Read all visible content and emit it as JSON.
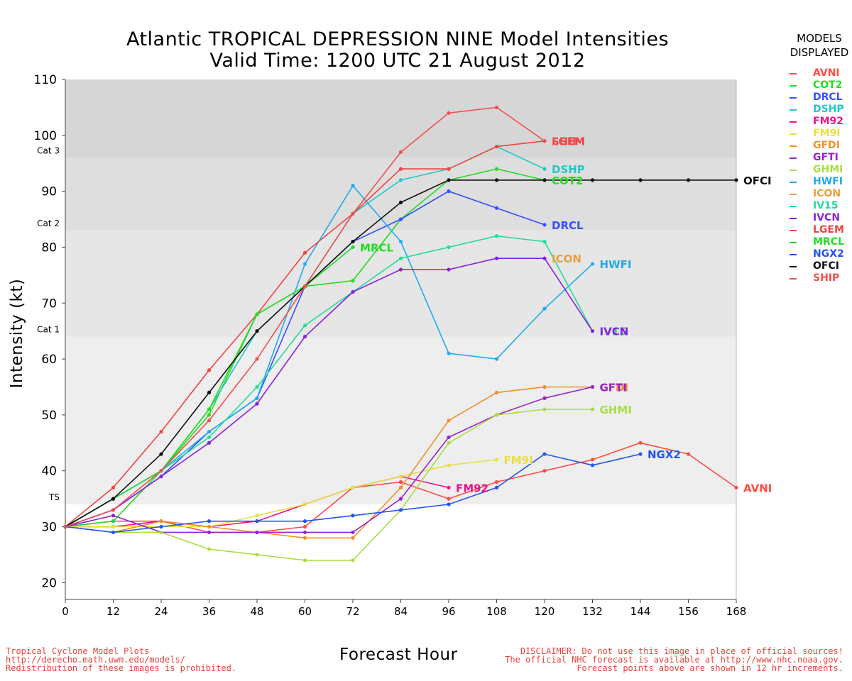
{
  "title": {
    "line1": "Atlantic TROPICAL DEPRESSION NINE Model Intensities",
    "line2": "Valid Time: 1200 UTC 21 August 2012"
  },
  "legend_title": {
    "line1": "MODELS",
    "line2": "DISPLAYED"
  },
  "footer_left": [
    "Tropical Cyclone Model Plots",
    "http://derecho.math.uwm.edu/models/",
    "Redistribution of these images is prohibited."
  ],
  "footer_right": [
    "DISCLAIMER: Do not use this image in place of official sources!",
    "The official NHC forecast is available at http://www.nhc.noaa.gov.",
    "Forecast points above are shown in 12 hr increments."
  ],
  "chart_data": {
    "type": "line",
    "title": "Atlantic TROPICAL DEPRESSION NINE Model Intensities",
    "subtitle": "Valid Time: 1200 UTC 21 August 2012",
    "xlabel": "Forecast Hour",
    "ylabel": "Intensity (kt)",
    "xlim": [
      0,
      168
    ],
    "ylim": [
      17,
      110
    ],
    "x_ticks": [
      0,
      12,
      24,
      36,
      48,
      60,
      72,
      84,
      96,
      108,
      120,
      132,
      144,
      156,
      168
    ],
    "y_ticks": [
      20,
      30,
      40,
      50,
      60,
      70,
      80,
      90,
      100,
      110
    ],
    "bands": [
      {
        "from": 34,
        "to": 64,
        "color": "#eeeeee"
      },
      {
        "from": 64,
        "to": 83,
        "color": "#e6e6e6"
      },
      {
        "from": 83,
        "to": 96,
        "color": "#dedede"
      },
      {
        "from": 96,
        "to": 110,
        "color": "#d6d6d6"
      }
    ],
    "category_labels": [
      {
        "text": "TS",
        "value": 34
      },
      {
        "text": "Cat 1",
        "value": 64
      },
      {
        "text": "Cat 2",
        "value": 83
      },
      {
        "text": "Cat 3",
        "value": 96
      }
    ],
    "legend_position": "right",
    "series": [
      {
        "name": "AVNI",
        "color": "#ff4c44",
        "points": [
          [
            0,
            30
          ],
          [
            12,
            31
          ],
          [
            24,
            31
          ],
          [
            36,
            29
          ],
          [
            48,
            29
          ],
          [
            60,
            30
          ],
          [
            72,
            37
          ],
          [
            84,
            38
          ],
          [
            96,
            35
          ],
          [
            108,
            38
          ],
          [
            120,
            40
          ],
          [
            132,
            42
          ],
          [
            144,
            45
          ],
          [
            156,
            43
          ],
          [
            168,
            37
          ]
        ]
      },
      {
        "name": "COT2",
        "color": "#22dd22",
        "points": [
          [
            0,
            30
          ],
          [
            12,
            31
          ],
          [
            24,
            40
          ],
          [
            36,
            50
          ],
          [
            48,
            68
          ],
          [
            60,
            73
          ],
          [
            72,
            74
          ],
          [
            84,
            85
          ],
          [
            96,
            92
          ],
          [
            108,
            94
          ],
          [
            120,
            92
          ]
        ]
      },
      {
        "name": "DRCL",
        "color": "#3350ff",
        "points": [
          [
            0,
            30
          ],
          [
            12,
            33
          ],
          [
            24,
            39
          ],
          [
            36,
            47
          ],
          [
            48,
            53
          ],
          [
            60,
            73
          ],
          [
            72,
            81
          ],
          [
            84,
            85
          ],
          [
            96,
            90
          ],
          [
            108,
            87
          ],
          [
            120,
            84
          ]
        ]
      },
      {
        "name": "DSHP",
        "color": "#22c8c8",
        "points": [
          [
            0,
            30
          ],
          [
            12,
            35
          ],
          [
            24,
            40
          ],
          [
            36,
            51
          ],
          [
            48,
            65
          ],
          [
            60,
            73
          ],
          [
            72,
            86
          ],
          [
            84,
            92
          ],
          [
            96,
            94
          ],
          [
            108,
            98
          ],
          [
            120,
            94
          ]
        ]
      },
      {
        "name": "FM92",
        "color": "#ee1188",
        "points": [
          [
            0,
            30
          ],
          [
            12,
            30
          ],
          [
            24,
            31
          ],
          [
            36,
            30
          ],
          [
            48,
            31
          ],
          [
            60,
            34
          ],
          [
            72,
            37
          ],
          [
            84,
            39
          ],
          [
            96,
            37
          ]
        ]
      },
      {
        "name": "FM9I",
        "color": "#e8e040",
        "points": [
          [
            0,
            30
          ],
          [
            12,
            30
          ],
          [
            24,
            30
          ],
          [
            36,
            30
          ],
          [
            48,
            32
          ],
          [
            60,
            34
          ],
          [
            72,
            37
          ],
          [
            84,
            39
          ],
          [
            96,
            41
          ],
          [
            108,
            42
          ]
        ]
      },
      {
        "name": "GFDI",
        "color": "#f0902a",
        "points": [
          [
            0,
            30
          ],
          [
            12,
            29
          ],
          [
            24,
            31
          ],
          [
            36,
            30
          ],
          [
            48,
            29
          ],
          [
            60,
            28
          ],
          [
            72,
            28
          ],
          [
            84,
            37
          ],
          [
            96,
            49
          ],
          [
            108,
            54
          ],
          [
            120,
            55
          ],
          [
            132,
            55
          ]
        ]
      },
      {
        "name": "GFTI",
        "color": "#9922cc",
        "points": [
          [
            0,
            30
          ],
          [
            12,
            32
          ],
          [
            24,
            29
          ],
          [
            36,
            29
          ],
          [
            48,
            29
          ],
          [
            60,
            29
          ],
          [
            72,
            29
          ],
          [
            84,
            35
          ],
          [
            96,
            46
          ],
          [
            108,
            50
          ],
          [
            120,
            53
          ],
          [
            132,
            55
          ]
        ]
      },
      {
        "name": "GHMI",
        "color": "#aadd44",
        "points": [
          [
            0,
            30
          ],
          [
            12,
            29
          ],
          [
            24,
            29
          ],
          [
            36,
            26
          ],
          [
            48,
            25
          ],
          [
            60,
            24
          ],
          [
            72,
            24
          ],
          [
            84,
            33
          ],
          [
            96,
            45
          ],
          [
            108,
            50
          ],
          [
            120,
            51
          ],
          [
            132,
            51
          ]
        ]
      },
      {
        "name": "HWFI",
        "color": "#22aaee",
        "points": [
          [
            0,
            30
          ],
          [
            12,
            35
          ],
          [
            24,
            40
          ],
          [
            36,
            47
          ],
          [
            48,
            53
          ],
          [
            60,
            77
          ],
          [
            72,
            91
          ],
          [
            84,
            81
          ],
          [
            96,
            61
          ],
          [
            108,
            60
          ],
          [
            120,
            69
          ],
          [
            132,
            77
          ]
        ]
      },
      {
        "name": "ICON",
        "color": "#e8a040",
        "points": []
      },
      {
        "name": "IV15",
        "color": "#22dd99",
        "points": [
          [
            0,
            30
          ],
          [
            12,
            35
          ],
          [
            24,
            40
          ],
          [
            36,
            46
          ],
          [
            48,
            55
          ],
          [
            60,
            66
          ],
          [
            72,
            72
          ],
          [
            84,
            78
          ],
          [
            96,
            80
          ],
          [
            108,
            82
          ],
          [
            120,
            81
          ],
          [
            132,
            65
          ]
        ]
      },
      {
        "name": "IVCN",
        "color": "#8822dd",
        "points": [
          [
            0,
            30
          ],
          [
            12,
            33
          ],
          [
            24,
            39
          ],
          [
            36,
            45
          ],
          [
            48,
            52
          ],
          [
            60,
            64
          ],
          [
            72,
            72
          ],
          [
            84,
            76
          ],
          [
            96,
            76
          ],
          [
            108,
            78
          ],
          [
            120,
            78
          ],
          [
            132,
            65
          ]
        ]
      },
      {
        "name": "LGEM",
        "color": "#ee4444",
        "points": [
          [
            0,
            30
          ],
          [
            12,
            37
          ],
          [
            24,
            47
          ],
          [
            36,
            58
          ],
          [
            48,
            68
          ],
          [
            60,
            79
          ],
          [
            72,
            86
          ],
          [
            84,
            94
          ],
          [
            96,
            94
          ],
          [
            108,
            98
          ],
          [
            120,
            99
          ]
        ]
      },
      {
        "name": "MRCL",
        "color": "#22dd22",
        "points": [
          [
            0,
            30
          ],
          [
            12,
            35
          ],
          [
            24,
            40
          ],
          [
            36,
            51
          ],
          [
            48,
            68
          ],
          [
            60,
            73
          ],
          [
            72,
            80
          ]
        ]
      },
      {
        "name": "NGX2",
        "color": "#2255ee",
        "points": [
          [
            0,
            30
          ],
          [
            12,
            29
          ],
          [
            24,
            30
          ],
          [
            36,
            31
          ],
          [
            48,
            31
          ],
          [
            60,
            31
          ],
          [
            72,
            32
          ],
          [
            84,
            33
          ],
          [
            96,
            34
          ],
          [
            108,
            37
          ],
          [
            120,
            43
          ],
          [
            132,
            41
          ],
          [
            144,
            43
          ]
        ]
      },
      {
        "name": "OFCI",
        "color": "#111111",
        "points": [
          [
            0,
            30
          ],
          [
            12,
            35
          ],
          [
            24,
            43
          ],
          [
            36,
            54
          ],
          [
            48,
            65
          ],
          [
            60,
            73
          ],
          [
            72,
            81
          ],
          [
            84,
            88
          ],
          [
            96,
            92
          ],
          [
            108,
            92
          ],
          [
            120,
            92
          ],
          [
            132,
            92
          ],
          [
            144,
            92
          ],
          [
            156,
            92
          ],
          [
            168,
            92
          ]
        ]
      },
      {
        "name": "SHIP",
        "color": "#f05050",
        "points": [
          [
            0,
            30
          ],
          [
            12,
            33
          ],
          [
            24,
            40
          ],
          [
            36,
            49
          ],
          [
            48,
            60
          ],
          [
            60,
            73
          ],
          [
            72,
            86
          ],
          [
            84,
            97
          ],
          [
            96,
            104
          ],
          [
            108,
            105
          ],
          [
            120,
            99
          ]
        ]
      }
    ],
    "end_labels": [
      {
        "text": "AVNI",
        "model": "AVNI",
        "x": 168,
        "y": 37
      },
      {
        "text": "COT2",
        "model": "COT2",
        "x": 120,
        "y": 92
      },
      {
        "text": "DRCL",
        "model": "DRCL",
        "x": 120,
        "y": 84
      },
      {
        "text": "DSHP",
        "model": "DSHP",
        "x": 120,
        "y": 94
      },
      {
        "text": "FM92",
        "model": "FM92",
        "x": 96,
        "y": 37
      },
      {
        "text": "FM9I",
        "model": "FM9I",
        "x": 108,
        "y": 42
      },
      {
        "text": "GFDI",
        "model": "GFDI",
        "x": 132,
        "y": 55
      },
      {
        "text": "GFTI",
        "model": "GFTI",
        "x": 132,
        "y": 55
      },
      {
        "text": "GHMI",
        "model": "GHMI",
        "x": 132,
        "y": 51
      },
      {
        "text": "HWFI",
        "model": "HWFI",
        "x": 132,
        "y": 77
      },
      {
        "text": "ICON",
        "model": "ICON",
        "x": 120,
        "y": 78
      },
      {
        "text": "IV15",
        "model": "IV15",
        "x": 132,
        "y": 65
      },
      {
        "text": "IVCN",
        "model": "IVCN",
        "x": 132,
        "y": 65
      },
      {
        "text": "LGEM",
        "model": "LGEM",
        "x": 120,
        "y": 99
      },
      {
        "text": "MRCL",
        "model": "MRCL",
        "x": 72,
        "y": 80
      },
      {
        "text": "NGX2",
        "model": "NGX2",
        "x": 144,
        "y": 43
      },
      {
        "text": "OFCI",
        "model": "OFCI",
        "x": 168,
        "y": 92
      },
      {
        "text": "SHIP",
        "model": "SHIP",
        "x": 120,
        "y": 99
      }
    ]
  }
}
